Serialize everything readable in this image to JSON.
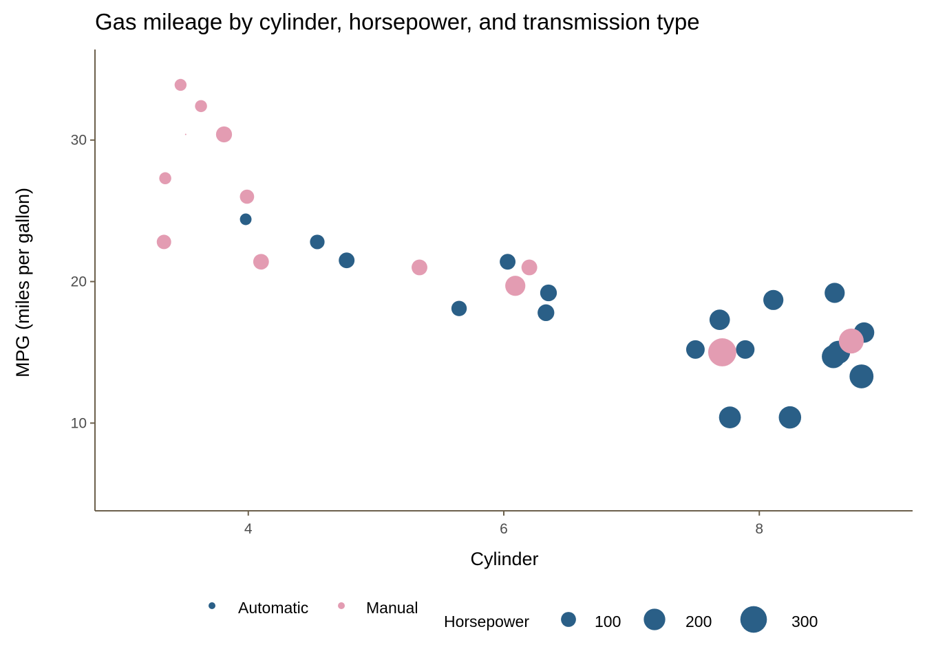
{
  "chart_data": {
    "type": "scatter",
    "title": "Gas mileage by cylinder, horsepower, and transmission type",
    "xlabel": "Cylinder",
    "ylabel": "MPG (miles per gallon)",
    "xlim": [
      2.8,
      9.2
    ],
    "ylim": [
      3.8,
      36.4
    ],
    "xticks": [
      4,
      6,
      8
    ],
    "yticks": [
      10,
      20,
      30
    ],
    "grid": false,
    "legend_position": "bottom",
    "colors": {
      "Automatic": "#2a5f87",
      "Manual": "#e39cb2",
      "axis": "#6b5f4b"
    },
    "size_legend": {
      "title": "Horsepower",
      "values": [
        100,
        200,
        300
      ]
    },
    "series": [
      {
        "name": "Automatic",
        "color": "#2a5f87",
        "points": [
          {
            "x": 3.98,
            "y": 24.4,
            "hp": 62
          },
          {
            "x": 4.54,
            "y": 22.8,
            "hp": 95
          },
          {
            "x": 4.77,
            "y": 21.5,
            "hp": 110
          },
          {
            "x": 5.65,
            "y": 18.1,
            "hp": 105
          },
          {
            "x": 6.03,
            "y": 21.4,
            "hp": 110
          },
          {
            "x": 6.35,
            "y": 19.2,
            "hp": 123
          },
          {
            "x": 6.33,
            "y": 17.8,
            "hp": 123
          },
          {
            "x": 7.5,
            "y": 15.2,
            "hp": 150
          },
          {
            "x": 7.89,
            "y": 15.2,
            "hp": 150
          },
          {
            "x": 7.69,
            "y": 17.3,
            "hp": 180
          },
          {
            "x": 8.11,
            "y": 18.7,
            "hp": 175
          },
          {
            "x": 8.59,
            "y": 19.2,
            "hp": 175
          },
          {
            "x": 7.77,
            "y": 10.4,
            "hp": 205
          },
          {
            "x": 8.24,
            "y": 10.4,
            "hp": 215
          },
          {
            "x": 8.82,
            "y": 16.4,
            "hp": 180
          },
          {
            "x": 8.62,
            "y": 15.0,
            "hp": 230
          },
          {
            "x": 8.58,
            "y": 14.7,
            "hp": 230
          },
          {
            "x": 8.8,
            "y": 13.3,
            "hp": 245
          }
        ]
      },
      {
        "name": "Manual",
        "color": "#e39cb2",
        "points": [
          {
            "x": 3.47,
            "y": 33.9,
            "hp": 65
          },
          {
            "x": 3.63,
            "y": 32.4,
            "hp": 66
          },
          {
            "x": 3.51,
            "y": 30.4,
            "hp": 10
          },
          {
            "x": 3.81,
            "y": 30.4,
            "hp": 113
          },
          {
            "x": 3.35,
            "y": 27.3,
            "hp": 66
          },
          {
            "x": 3.99,
            "y": 26.0,
            "hp": 91
          },
          {
            "x": 3.34,
            "y": 22.8,
            "hp": 93
          },
          {
            "x": 4.1,
            "y": 21.4,
            "hp": 109
          },
          {
            "x": 5.34,
            "y": 21.0,
            "hp": 110
          },
          {
            "x": 6.2,
            "y": 21.0,
            "hp": 110
          },
          {
            "x": 6.09,
            "y": 19.7,
            "hp": 175
          },
          {
            "x": 8.72,
            "y": 15.8,
            "hp": 264
          },
          {
            "x": 7.71,
            "y": 15.0,
            "hp": 335
          }
        ]
      }
    ]
  }
}
